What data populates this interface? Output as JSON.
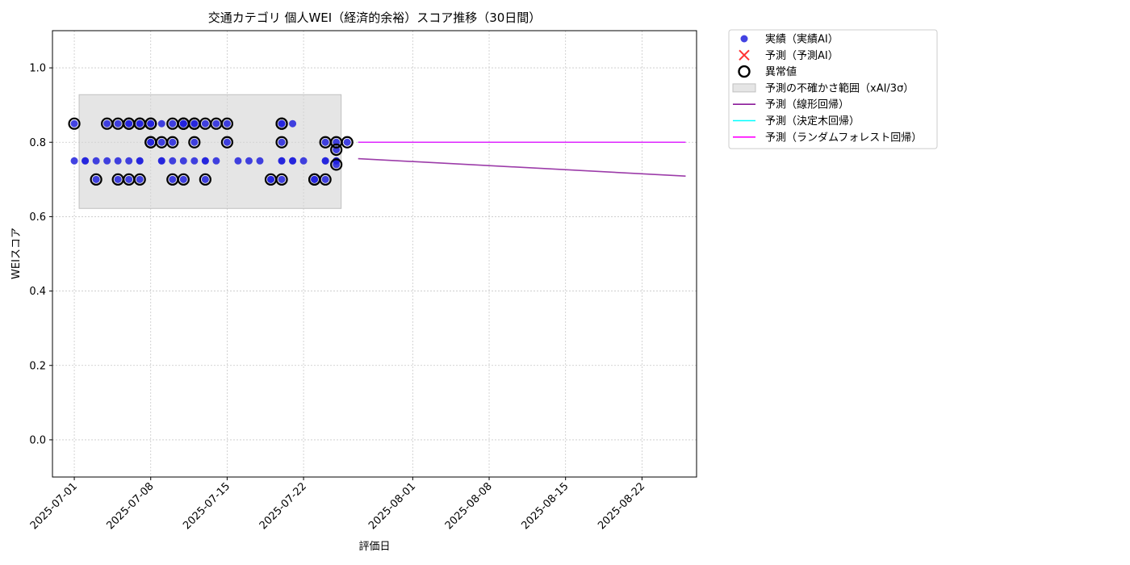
{
  "chart_data": {
    "type": "scatter",
    "title": "交通カテゴリ 個人WEI（経済的余裕）スコア推移（30日間）",
    "xlabel": "評価日",
    "ylabel": "WEIスコア",
    "x_axis_type": "date",
    "xlim": [
      "2025-06-29",
      "2025-08-27"
    ],
    "ylim": [
      -0.1,
      1.1
    ],
    "yticks": [
      0.0,
      0.2,
      0.4,
      0.6,
      0.8,
      1.0
    ],
    "xticks": [
      "2025-07-01",
      "2025-07-08",
      "2025-07-15",
      "2025-07-22",
      "2025-08-01",
      "2025-08-08",
      "2025-08-15",
      "2025-08-22"
    ],
    "grid": true,
    "legend_position": "outside-top-right",
    "uncertainty_band": {
      "x_start": "2025-07-01",
      "x_end": "2025-07-25",
      "y_low": 0.622,
      "y_high": 0.928
    },
    "series": [
      {
        "name": "実績（実績AI）",
        "kind": "scatter",
        "color": "#2222dd",
        "points": [
          [
            "2025-07-01",
            0.75
          ],
          [
            "2025-07-01",
            0.85
          ],
          [
            "2025-07-02",
            0.75
          ],
          [
            "2025-07-02",
            0.75
          ],
          [
            "2025-07-03",
            0.75
          ],
          [
            "2025-07-03",
            0.7
          ],
          [
            "2025-07-04",
            0.75
          ],
          [
            "2025-07-04",
            0.85
          ],
          [
            "2025-07-05",
            0.75
          ],
          [
            "2025-07-05",
            0.85
          ],
          [
            "2025-07-05",
            0.7
          ],
          [
            "2025-07-06",
            0.85
          ],
          [
            "2025-07-06",
            0.85
          ],
          [
            "2025-07-06",
            0.7
          ],
          [
            "2025-07-06",
            0.75
          ],
          [
            "2025-07-07",
            0.85
          ],
          [
            "2025-07-07",
            0.75
          ],
          [
            "2025-07-07",
            0.85
          ],
          [
            "2025-07-07",
            0.7
          ],
          [
            "2025-07-07",
            0.75
          ],
          [
            "2025-07-08",
            0.85
          ],
          [
            "2025-07-08",
            0.85
          ],
          [
            "2025-07-08",
            0.8
          ],
          [
            "2025-07-08",
            0.8
          ],
          [
            "2025-07-09",
            0.85
          ],
          [
            "2025-07-09",
            0.75
          ],
          [
            "2025-07-09",
            0.8
          ],
          [
            "2025-07-09",
            0.75
          ],
          [
            "2025-07-10",
            0.75
          ],
          [
            "2025-07-10",
            0.7
          ],
          [
            "2025-07-10",
            0.8
          ],
          [
            "2025-07-10",
            0.85
          ],
          [
            "2025-07-11",
            0.85
          ],
          [
            "2025-07-11",
            0.85
          ],
          [
            "2025-07-11",
            0.75
          ],
          [
            "2025-07-11",
            0.7
          ],
          [
            "2025-07-11",
            0.85
          ],
          [
            "2025-07-12",
            0.85
          ],
          [
            "2025-07-12",
            0.85
          ],
          [
            "2025-07-12",
            0.75
          ],
          [
            "2025-07-12",
            0.8
          ],
          [
            "2025-07-13",
            0.7
          ],
          [
            "2025-07-13",
            0.75
          ],
          [
            "2025-07-13",
            0.85
          ],
          [
            "2025-07-13",
            0.75
          ],
          [
            "2025-07-14",
            0.85
          ],
          [
            "2025-07-14",
            0.75
          ],
          [
            "2025-07-15",
            0.85
          ],
          [
            "2025-07-15",
            0.8
          ],
          [
            "2025-07-16",
            0.75
          ],
          [
            "2025-07-17",
            0.75
          ],
          [
            "2025-07-18",
            0.75
          ],
          [
            "2025-07-19",
            0.7
          ],
          [
            "2025-07-19",
            0.7
          ],
          [
            "2025-07-20",
            0.8
          ],
          [
            "2025-07-20",
            0.85
          ],
          [
            "2025-07-20",
            0.75
          ],
          [
            "2025-07-20",
            0.7
          ],
          [
            "2025-07-20",
            0.85
          ],
          [
            "2025-07-20",
            0.75
          ],
          [
            "2025-07-21",
            0.85
          ],
          [
            "2025-07-21",
            0.75
          ],
          [
            "2025-07-21",
            0.75
          ],
          [
            "2025-07-22",
            0.75
          ],
          [
            "2025-07-23",
            0.7
          ],
          [
            "2025-07-23",
            0.7
          ],
          [
            "2025-07-24",
            0.8
          ],
          [
            "2025-07-24",
            0.75
          ],
          [
            "2025-07-24",
            0.7
          ],
          [
            "2025-07-24",
            0.75
          ],
          [
            "2025-07-25",
            0.75
          ],
          [
            "2025-07-25",
            0.78
          ],
          [
            "2025-07-25",
            0.75
          ],
          [
            "2025-07-25",
            0.8
          ],
          [
            "2025-07-25",
            0.74
          ],
          [
            "2025-07-26",
            0.8
          ]
        ]
      },
      {
        "name": "予測（予測AI）",
        "kind": "scatter",
        "marker": "x",
        "color": "#ff3333",
        "points": []
      },
      {
        "name": "異常値",
        "kind": "scatter",
        "marker": "ring",
        "color": "#000000",
        "points": [
          [
            "2025-07-01",
            0.85
          ],
          [
            "2025-07-03",
            0.7
          ],
          [
            "2025-07-04",
            0.85
          ],
          [
            "2025-07-05",
            0.85
          ],
          [
            "2025-07-05",
            0.7
          ],
          [
            "2025-07-06",
            0.85
          ],
          [
            "2025-07-06",
            0.85
          ],
          [
            "2025-07-06",
            0.7
          ],
          [
            "2025-07-07",
            0.85
          ],
          [
            "2025-07-07",
            0.85
          ],
          [
            "2025-07-07",
            0.7
          ],
          [
            "2025-07-08",
            0.85
          ],
          [
            "2025-07-08",
            0.85
          ],
          [
            "2025-07-08",
            0.8
          ],
          [
            "2025-07-08",
            0.8
          ],
          [
            "2025-07-09",
            0.8
          ],
          [
            "2025-07-10",
            0.7
          ],
          [
            "2025-07-10",
            0.8
          ],
          [
            "2025-07-10",
            0.85
          ],
          [
            "2025-07-11",
            0.85
          ],
          [
            "2025-07-11",
            0.85
          ],
          [
            "2025-07-11",
            0.7
          ],
          [
            "2025-07-11",
            0.85
          ],
          [
            "2025-07-12",
            0.85
          ],
          [
            "2025-07-12",
            0.85
          ],
          [
            "2025-07-12",
            0.8
          ],
          [
            "2025-07-13",
            0.7
          ],
          [
            "2025-07-13",
            0.85
          ],
          [
            "2025-07-14",
            0.85
          ],
          [
            "2025-07-15",
            0.85
          ],
          [
            "2025-07-15",
            0.8
          ],
          [
            "2025-07-19",
            0.7
          ],
          [
            "2025-07-20",
            0.8
          ],
          [
            "2025-07-20",
            0.85
          ],
          [
            "2025-07-20",
            0.7
          ],
          [
            "2025-07-20",
            0.85
          ],
          [
            "2025-07-23",
            0.7
          ],
          [
            "2025-07-23",
            0.7
          ],
          [
            "2025-07-24",
            0.8
          ],
          [
            "2025-07-24",
            0.7
          ],
          [
            "2025-07-25",
            0.78
          ],
          [
            "2025-07-25",
            0.8
          ],
          [
            "2025-07-25",
            0.74
          ],
          [
            "2025-07-26",
            0.8
          ]
        ]
      },
      {
        "name": "予測の不確かさ範囲（xAI/3σ）",
        "kind": "band",
        "color": "#d3d3d3"
      },
      {
        "name": "予測（線形回帰）",
        "kind": "line",
        "color": "#8b1a9a",
        "points": [
          [
            "2025-07-27",
            0.756
          ],
          [
            "2025-08-26",
            0.709
          ]
        ]
      },
      {
        "name": "予測（決定木回帰）",
        "kind": "line",
        "color": "#00ffff",
        "points": [
          [
            "2025-07-27",
            0.8
          ],
          [
            "2025-08-26",
            0.8
          ]
        ]
      },
      {
        "name": "予測（ランダムフォレスト回帰）",
        "kind": "line",
        "color": "#ff00ff",
        "points": [
          [
            "2025-07-27",
            0.8
          ],
          [
            "2025-08-26",
            0.8
          ]
        ]
      }
    ]
  }
}
